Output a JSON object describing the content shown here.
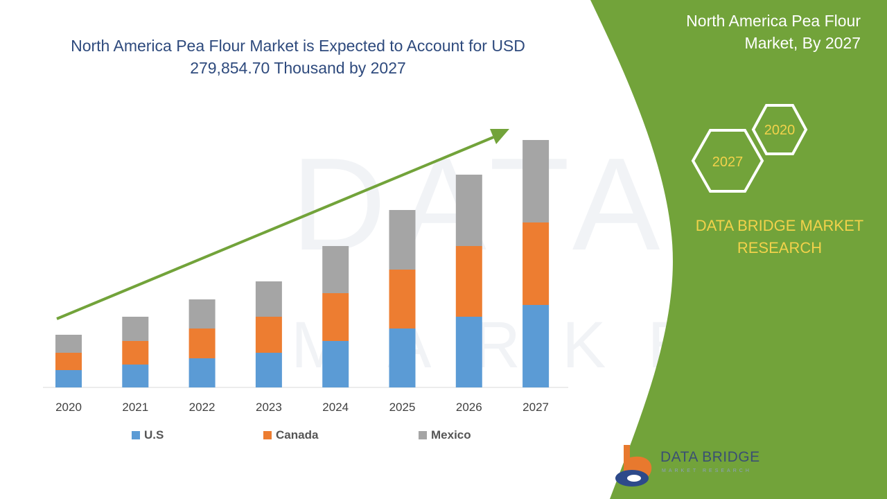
{
  "chart_title": "North America Pea Flour Market is Expected to Account for USD 279,854.70 Thousand by 2027",
  "side_panel": {
    "title": "North America Pea Flour Market, By 2027",
    "hexagons": [
      "2020",
      "2027"
    ],
    "brand_name": "DATA BRIDGE MARKET RESEARCH"
  },
  "logo": {
    "name": "DATA BRIDGE",
    "tagline": "MARKET RESEARCH"
  },
  "colors": {
    "us": "#5B9BD5",
    "canada": "#ED7D31",
    "mexico": "#A5A5A5",
    "green": "#72A33A",
    "title": "#2E4A7D",
    "brand_yellow": "#F2D24B"
  },
  "chart_data": {
    "type": "bar",
    "stacked": true,
    "title": "North America Pea Flour Market is Expected to Account for USD 279,854.70 Thousand by 2027",
    "categories": [
      "2020",
      "2021",
      "2022",
      "2023",
      "2024",
      "2025",
      "2026",
      "2027"
    ],
    "series": [
      {
        "name": "U.S",
        "values": [
          25,
          33,
          42,
          50,
          67,
          85,
          102,
          119
        ]
      },
      {
        "name": "Canada",
        "values": [
          25,
          34,
          43,
          52,
          69,
          85,
          102,
          119
        ]
      },
      {
        "name": "Mexico",
        "values": [
          26,
          35,
          42,
          51,
          68,
          86,
          103,
          119
        ]
      }
    ],
    "ylim": [
      0,
      380
    ],
    "xlabel": "",
    "ylabel": "",
    "legend": "bottom",
    "annotation": "upward trend arrow"
  }
}
